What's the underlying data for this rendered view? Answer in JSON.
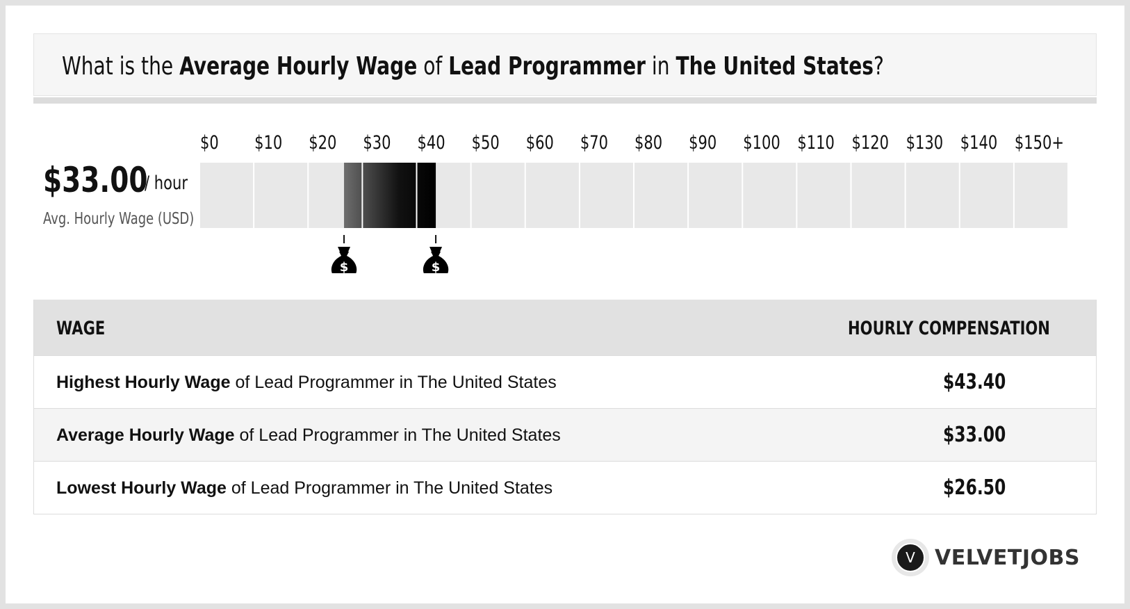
{
  "header": {
    "question_prefix": "What is the ",
    "question_metric": "Average Hourly Wage",
    "question_of": " of ",
    "question_job": "Lead Programmer",
    "question_in": " in ",
    "question_location": "The United States",
    "question_suffix": "?"
  },
  "summary": {
    "value": "$33.00",
    "unit": "/ hour",
    "label": "Avg. Hourly Wage (USD)"
  },
  "chart_data": {
    "type": "bar",
    "categories": [
      "$0",
      "$10",
      "$20",
      "$30",
      "$40",
      "$50",
      "$60",
      "$70",
      "$80",
      "$90",
      "$100",
      "$110",
      "$120",
      "$130",
      "$140",
      "$150+"
    ],
    "xlim": [
      0,
      150
    ],
    "range_low": 26.5,
    "range_avg": 33.0,
    "range_high": 43.4,
    "colors": {
      "cell": "#e8e8e8",
      "range_start": "#6e6e6e",
      "range_mid": "#111111",
      "range_end": "#000000",
      "marker": "#000000"
    },
    "markers": [
      "money-bag-icon",
      "money-bag-icon"
    ]
  },
  "table": {
    "col_wage": "WAGE",
    "col_comp": "HOURLY COMPENSATION",
    "rows": [
      {
        "bold": "Highest Hourly Wage",
        "rest": " of Lead Programmer in The United States",
        "value": "$43.40"
      },
      {
        "bold": "Average Hourly Wage",
        "rest": " of Lead Programmer in The United States",
        "value": "$33.00"
      },
      {
        "bold": "Lowest Hourly Wage",
        "rest": " of Lead Programmer in The United States",
        "value": "$26.50"
      }
    ]
  },
  "brand": {
    "icon_letter": "V",
    "name": "VELVETJOBS"
  }
}
